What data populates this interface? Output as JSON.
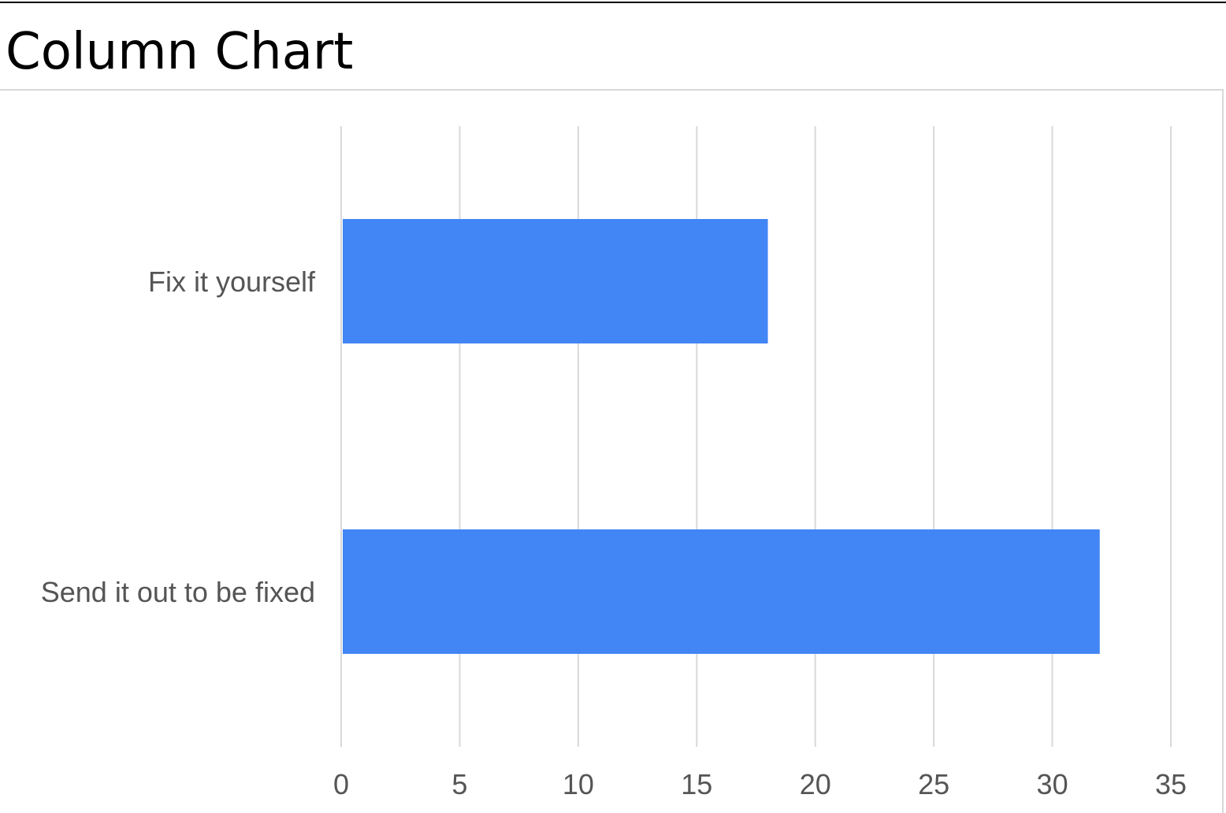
{
  "page": {
    "title": "Column Chart"
  },
  "colors": {
    "bar": "#4285f4",
    "grid": "#d9d9d9",
    "label": "#555555",
    "title": "#000000"
  },
  "chart_data": {
    "type": "bar",
    "orientation": "horizontal",
    "categories": [
      "Fix it yourself",
      "Send it out to be fixed"
    ],
    "values": [
      18,
      32
    ],
    "title": "",
    "xlabel": "",
    "ylabel": "",
    "xlim": [
      0,
      35
    ],
    "xticks": [
      "0",
      "5",
      "10",
      "15",
      "20",
      "25",
      "30",
      "35"
    ],
    "grid": true,
    "legend": "none"
  }
}
